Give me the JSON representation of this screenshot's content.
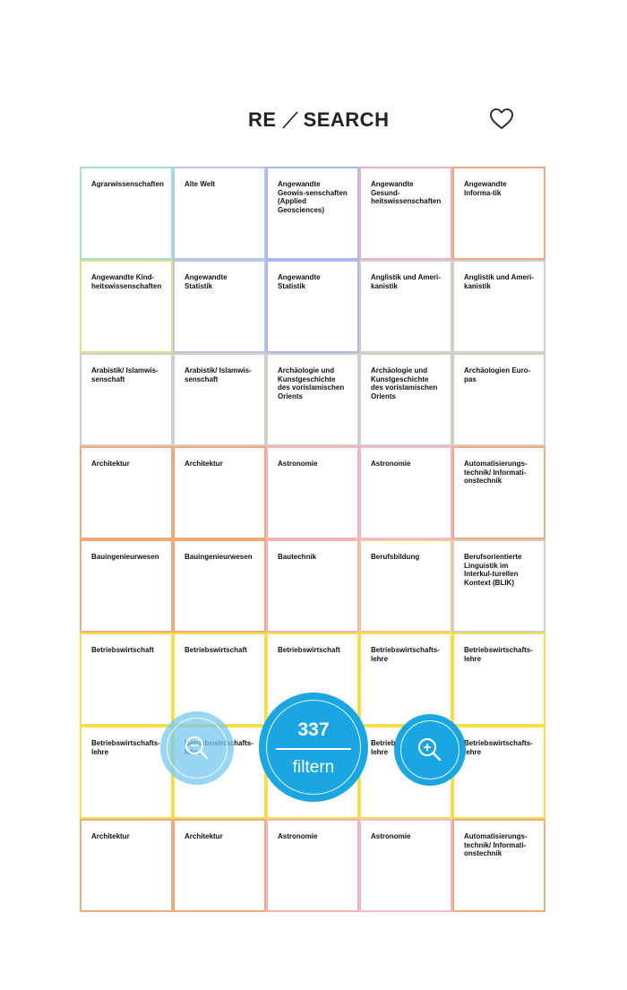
{
  "header": {
    "logo_left": "RE",
    "logo_right": "SEARCH",
    "favorites_icon": "heart-outline-icon"
  },
  "grid": {
    "cells": [
      {
        "label": "Agrarwissenschaften",
        "color": "#a3e0d2"
      },
      {
        "label": "Alte Welt",
        "color": "#b9c7e6"
      },
      {
        "label": "Angewandte Geowis-senschaften (Applied Geosciences)",
        "color": "#a9b8ee"
      },
      {
        "label": "Angewandte Gesund-heitswissenschaften",
        "color": "#ebb1c7"
      },
      {
        "label": "Angewandte Informa-tik",
        "color": "#f3a77c"
      },
      {
        "label": "Angewandte Kind-heitswissenschaften",
        "color": "#e3dc86"
      },
      {
        "label": "Angewandte Statistik",
        "color": "#b9c7e6"
      },
      {
        "label": "Angewandte Statistik",
        "color": "#a9b8ee"
      },
      {
        "label": "Anglistik und Ameri-kanistik",
        "color": "#d2d0c6"
      },
      {
        "label": "Anglistik und Ameri-kanistik",
        "color": "#d2d0c6"
      },
      {
        "label": "Arabistik/ Islamwis-senschaft",
        "color": "#d2d0c6"
      },
      {
        "label": "Arabistik/ Islamwis-senschaft",
        "color": "#d2d0c6"
      },
      {
        "label": "Archäologie und Kunstgeschichte des vorislamischen Orients",
        "color": "#d2d0c6"
      },
      {
        "label": "Archäologie und Kunstgeschichte des vorislamischen Orients",
        "color": "#d2d0c6"
      },
      {
        "label": "Archäologien Euro-pas",
        "color": "#d2d0c6"
      },
      {
        "label": "Architektur",
        "color": "#f1a977"
      },
      {
        "label": "Architektur",
        "color": "#f1a977"
      },
      {
        "label": "Astronomie",
        "color": "#f3b3b1"
      },
      {
        "label": "Astronomie",
        "color": "#f1b6d4"
      },
      {
        "label": "Automatisierungs-technik/ Informati-onstechnik",
        "color": "#f1a977"
      },
      {
        "label": "Bauingenieurwesen",
        "color": "#f1a977"
      },
      {
        "label": "Bauingenieurwesen",
        "color": "#f1a977"
      },
      {
        "label": "Bautechnik",
        "color": "#f3b3b1"
      },
      {
        "label": "Berufsbildung",
        "color": "#f5c98e"
      },
      {
        "label": "Berufsorientierte Linguistik im Interkul-turellen Kontext (BLIK)",
        "color": "#d2d0c6"
      },
      {
        "label": "Betriebswirtschaft",
        "color": "#f5e04a"
      },
      {
        "label": "Betriebswirtschaft",
        "color": "#f5e04a"
      },
      {
        "label": "Betriebswirtschaft",
        "color": "#f5e04a"
      },
      {
        "label": "Betriebswirtschafts-lehre",
        "color": "#f5e04a"
      },
      {
        "label": "Betriebswirtschafts-lehre",
        "color": "#f5e04a"
      },
      {
        "label": "Betriebswirtschafts-lehre",
        "color": "#f5e04a"
      },
      {
        "label": "Betriebswirtschafts-lehre",
        "color": "#f5e04a"
      },
      {
        "label": "Betriebswirtschafts-lehre",
        "color": "#f5e04a"
      },
      {
        "label": "Betriebswirtschafts-lehre",
        "color": "#f5e04a"
      },
      {
        "label": "Betriebswirtschafts-lehre",
        "color": "#f5e04a"
      },
      {
        "label": "Architektur",
        "color": "#f1a977"
      },
      {
        "label": "Architektur",
        "color": "#f1a977"
      },
      {
        "label": "Astronomie",
        "color": "#f3b3b1"
      },
      {
        "label": "Astronomie",
        "color": "#f1b6d4"
      },
      {
        "label": "Automatisierungs-technik/ Informati-onstechnik",
        "color": "#f1a977"
      }
    ]
  },
  "actions": {
    "zoom_out_icon": "zoom-out-icon",
    "zoom_in_icon": "zoom-in-icon",
    "filter_count": "337",
    "filter_label": "filtern"
  },
  "colors": {
    "accent": "#1aa6e3",
    "accent_light": "#76c8f0"
  }
}
